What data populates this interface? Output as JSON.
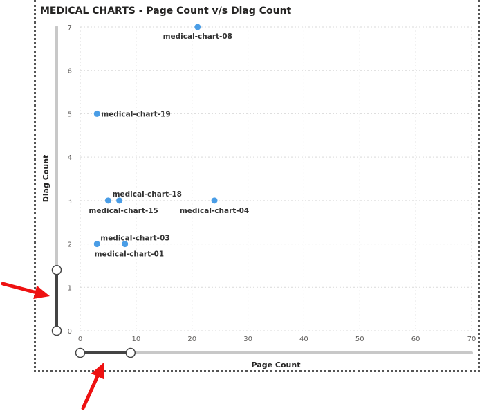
{
  "chart_data": {
    "type": "scatter",
    "title": "MEDICAL CHARTS - Page Count v/s Diag Count",
    "xlabel": "Page Count",
    "ylabel": "Diag Count",
    "xlim": [
      0,
      70
    ],
    "ylim": [
      0,
      7
    ],
    "x_ticks": [
      "0",
      "10",
      "20",
      "30",
      "40",
      "50",
      "60",
      "70"
    ],
    "y_ticks": [
      "0",
      "1",
      "2",
      "3",
      "4",
      "5",
      "6",
      "7"
    ],
    "grid": true,
    "marker_color": "#4a9de6",
    "points": [
      {
        "label": "medical-chart-08",
        "x": 21,
        "y": 7
      },
      {
        "label": "medical-chart-19",
        "x": 3,
        "y": 5
      },
      {
        "label": "medical-chart-18",
        "x": 7,
        "y": 3
      },
      {
        "label": "medical-chart-15",
        "x": 5,
        "y": 3
      },
      {
        "label": "medical-chart-04",
        "x": 24,
        "y": 3
      },
      {
        "label": "medical-chart-03",
        "x": 3,
        "y": 2
      },
      {
        "label": "medical-chart-01",
        "x": 8,
        "y": 2
      }
    ],
    "y_zoom_slider": {
      "min": 0,
      "max": 1.4
    },
    "x_zoom_slider": {
      "min": 0,
      "max": 9
    }
  }
}
